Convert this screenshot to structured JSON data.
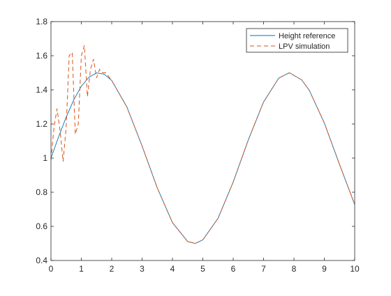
{
  "chart_data": {
    "type": "line",
    "xlim": [
      0,
      10
    ],
    "ylim": [
      0.4,
      1.8
    ],
    "x_ticks": [
      0,
      1,
      2,
      3,
      4,
      5,
      6,
      7,
      8,
      9,
      10
    ],
    "y_ticks": [
      0.4,
      0.6,
      0.8,
      1,
      1.2,
      1.4,
      1.6,
      1.8
    ],
    "x_tick_labels": [
      "0",
      "1",
      "2",
      "3",
      "4",
      "5",
      "6",
      "7",
      "8",
      "9",
      "10"
    ],
    "y_tick_labels": [
      "0.4",
      "0.6",
      "0.8",
      "1",
      "1.2",
      "1.4",
      "1.6",
      "1.8"
    ],
    "grid": false,
    "legend_position": "top-right",
    "series": [
      {
        "name": "Height reference",
        "color": "#0072BD",
        "style": "solid",
        "x": [
          0,
          0.25,
          0.5,
          0.75,
          1,
          1.25,
          1.5,
          1.75,
          2,
          2.5,
          3,
          3.5,
          4,
          4.5,
          4.75,
          5,
          5.5,
          6,
          6.5,
          7,
          7.5,
          7.85,
          8.25,
          8.5,
          9,
          9.5,
          10
        ],
        "y": [
          1.0,
          1.124,
          1.24,
          1.341,
          1.421,
          1.474,
          1.499,
          1.492,
          1.455,
          1.299,
          1.071,
          0.825,
          0.622,
          0.511,
          0.5,
          0.521,
          0.647,
          0.86,
          1.108,
          1.329,
          1.469,
          1.5,
          1.459,
          1.399,
          1.206,
          0.963,
          0.728
        ]
      },
      {
        "name": "LPV simulation",
        "color": "#D95319",
        "style": "dashed",
        "x": [
          0,
          0.1,
          0.2,
          0.3,
          0.4,
          0.5,
          0.6,
          0.7,
          0.8,
          0.9,
          1.0,
          1.1,
          1.2,
          1.3,
          1.4,
          1.5,
          1.6,
          1.7,
          1.8,
          2,
          2.5,
          3,
          3.5,
          4,
          4.5,
          4.75,
          5,
          5.5,
          6,
          6.5,
          7,
          7.5,
          7.85,
          8.25,
          8.5,
          9,
          9.5,
          10
        ],
        "y": [
          0.99,
          1.18,
          1.29,
          1.16,
          0.98,
          1.18,
          1.6,
          1.62,
          1.14,
          1.2,
          1.6,
          1.66,
          1.36,
          1.52,
          1.58,
          1.47,
          1.52,
          1.5,
          1.5,
          1.455,
          1.299,
          1.071,
          0.825,
          0.622,
          0.511,
          0.5,
          0.521,
          0.647,
          0.86,
          1.108,
          1.329,
          1.469,
          1.5,
          1.459,
          1.399,
          1.206,
          0.963,
          0.728
        ]
      }
    ]
  }
}
